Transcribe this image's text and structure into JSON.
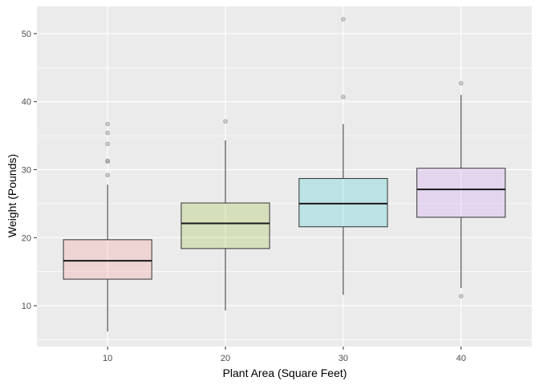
{
  "chart_data": {
    "type": "boxplot",
    "xlabel": "Plant Area (Square Feet)",
    "ylabel": "Weight (Pounds)",
    "ylim": [
      4,
      54
    ],
    "y_ticks": [
      10,
      20,
      30,
      40,
      50
    ],
    "grid": true,
    "theme": {
      "panel_bg": "#ebebeb",
      "grid_color": "#ffffff",
      "tick_color": "#333333"
    },
    "categories": [
      "10",
      "20",
      "30",
      "40"
    ],
    "boxes": [
      {
        "category": "10",
        "whisker_low": 6.2,
        "q1": 13.9,
        "median": 16.6,
        "q3": 19.7,
        "whisker_high": 27.8,
        "outliers": [
          29.2,
          31.2,
          31.3,
          33.8,
          35.4,
          36.7
        ],
        "fill": "#f8766d"
      },
      {
        "category": "20",
        "whisker_low": 9.3,
        "q1": 18.4,
        "median": 22.1,
        "q3": 25.1,
        "whisker_high": 34.3,
        "outliers": [
          37.1
        ],
        "fill": "#7cae00"
      },
      {
        "category": "30",
        "whisker_low": 11.6,
        "q1": 21.6,
        "median": 25.0,
        "q3": 28.7,
        "whisker_high": 36.7,
        "outliers": [
          40.7,
          52.1
        ],
        "fill": "#00bfc4"
      },
      {
        "category": "40",
        "whisker_low": 12.6,
        "q1": 23.0,
        "median": 27.1,
        "q3": 30.2,
        "whisker_high": 41.0,
        "outliers": [
          11.4,
          42.7
        ],
        "fill": "#c77cff"
      }
    ]
  }
}
